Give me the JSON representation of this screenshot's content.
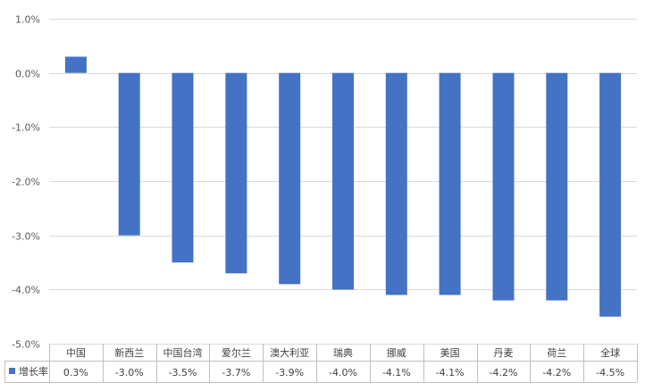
{
  "chart_data": {
    "type": "bar",
    "categories": [
      "中国",
      "新西兰",
      "中国台湾",
      "爱尔兰",
      "澳大利亚",
      "瑞典",
      "挪威",
      "美国",
      "丹麦",
      "荷兰",
      "全球"
    ],
    "series": [
      {
        "name": "增长率",
        "values": [
          0.3,
          -3.0,
          -3.5,
          -3.7,
          -3.9,
          -4.0,
          -4.1,
          -4.1,
          -4.2,
          -4.2,
          -4.5
        ],
        "value_labels": [
          "0.3%",
          "-3.0%",
          "-3.5%",
          "-3.7%",
          "-3.9%",
          "-4.0%",
          "-4.1%",
          "-4.1%",
          "-4.2%",
          "-4.2%",
          "-4.5%"
        ],
        "color": "#4472C4"
      }
    ],
    "y_ticks": [
      1.0,
      0.0,
      -1.0,
      -2.0,
      -3.0,
      -4.0,
      -5.0
    ],
    "y_tick_labels": [
      "1.0%",
      "0.0%",
      "-1.0%",
      "-2.0%",
      "-3.0%",
      "-4.0%",
      "-5.0%"
    ],
    "ylim": [
      -5.0,
      1.0
    ],
    "grid": true,
    "legend": "data-table",
    "title": "",
    "xlabel": "",
    "ylabel": ""
  }
}
